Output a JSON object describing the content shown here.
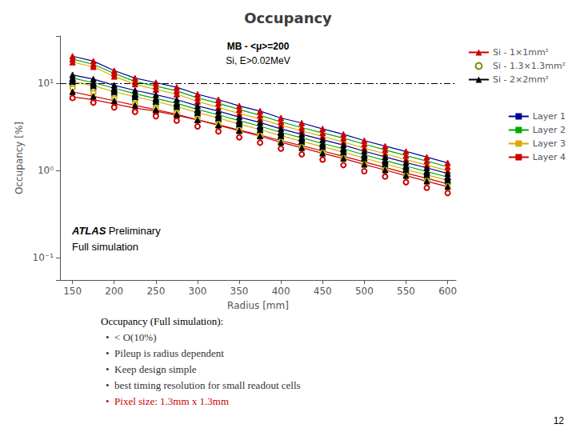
{
  "chart_data": {
    "type": "line",
    "title": "Occupancy",
    "xlabel": "Radius [mm]",
    "ylabel": "Occupancy [%]",
    "log": "y",
    "grid": false,
    "legend": "right",
    "xlim": [
      135,
      610
    ],
    "xticks": [
      150,
      200,
      250,
      300,
      350,
      400,
      450,
      500,
      550,
      600
    ],
    "ylim": [
      0.055,
      35
    ],
    "yticks": [
      {
        "value": 0.1,
        "label": "10⁻¹"
      },
      {
        "value": 1,
        "label": "10⁰"
      },
      {
        "value": 10,
        "label": "10¹"
      }
    ],
    "x": [
      150,
      175,
      200,
      225,
      250,
      275,
      300,
      325,
      350,
      375,
      400,
      425,
      450,
      475,
      500,
      525,
      550,
      575,
      600
    ],
    "series": [
      {
        "name": "Si - 1×1mm²",
        "color": "#cc0000",
        "marker": "triangle",
        "line_style": "solid",
        "series": [
          {
            "name": "Layer 1",
            "color": "#000099",
            "values": [
              20.5,
              18.0,
              14.0,
              11.5,
              10.2,
              9.0,
              7.5,
              6.5,
              5.5,
              4.8,
              4.0,
              3.5,
              3.0,
              2.6,
              2.2,
              1.9,
              1.65,
              1.42,
              1.22
            ]
          },
          {
            "name": "Layer 2",
            "color": "#00aa00",
            "values": [
              19.0,
              16.5,
              13.0,
              10.5,
              9.3,
              8.2,
              6.8,
              5.9,
              5.0,
              4.3,
              3.6,
              3.1,
              2.7,
              2.35,
              2.0,
              1.72,
              1.48,
              1.28,
              1.1
            ]
          },
          {
            "name": "Layer 3",
            "color": "#ddaa00",
            "values": [
              17.5,
              15.5,
              12.0,
              9.8,
              8.5,
              7.5,
              6.2,
              5.3,
              4.5,
              3.9,
              3.3,
              2.85,
              2.45,
              2.12,
              1.8,
              1.55,
              1.33,
              1.15,
              0.99
            ]
          },
          {
            "name": "Layer 4",
            "color": "#cc0000",
            "values": [
              7.0,
              6.5,
              5.8,
              5.2,
              4.8,
              4.3,
              3.8,
              3.35,
              2.9,
              2.55,
              2.2,
              1.92,
              1.67,
              1.45,
              1.25,
              1.08,
              0.93,
              0.81,
              0.7
            ]
          }
        ]
      },
      {
        "name": "Si - 1.3×1.3mm²",
        "color": "#888800",
        "marker": "open_circle",
        "line_style": "none",
        "series": [
          {
            "name": "Layer 1",
            "color": "#000099",
            "values": [
              10.5,
              9.3,
              8.0,
              7.0,
              6.2,
              5.5,
              4.65,
              4.05,
              3.45,
              3.0,
              2.55,
              2.2,
              1.9,
              1.65,
              1.4,
              1.21,
              1.04,
              0.9,
              0.78
            ]
          },
          {
            "name": "Layer 2",
            "color": "#00aa00",
            "values": [
              9.6,
              8.5,
              7.3,
              6.4,
              5.7,
              5.05,
              4.25,
              3.7,
              3.15,
              2.73,
              2.32,
              2.0,
              1.73,
              1.5,
              1.28,
              1.1,
              0.95,
              0.82,
              0.71
            ]
          },
          {
            "name": "Layer 3",
            "color": "#ddaa00",
            "values": [
              8.8,
              7.8,
              6.7,
              5.85,
              5.2,
              4.6,
              3.9,
              3.38,
              2.88,
              2.5,
              2.12,
              1.83,
              1.58,
              1.37,
              1.17,
              1.0,
              0.86,
              0.75,
              0.65
            ]
          },
          {
            "name": "Layer 4",
            "color": "#cc0000",
            "values": [
              6.8,
              6.0,
              5.3,
              4.7,
              4.2,
              3.73,
              3.2,
              2.8,
              2.4,
              2.08,
              1.78,
              1.53,
              1.33,
              1.15,
              0.98,
              0.85,
              0.73,
              0.63,
              0.55
            ]
          }
        ]
      },
      {
        "name": "Si - 2×2mm²",
        "color": "#000000",
        "marker": "triangle",
        "line_style": "solid",
        "series": [
          {
            "name": "Layer 1",
            "color": "#000099",
            "values": [
              12.5,
              11.2,
              9.5,
              8.3,
              7.4,
              6.5,
              5.5,
              4.8,
              4.1,
              3.55,
              3.0,
              2.6,
              2.25,
              1.95,
              1.66,
              1.43,
              1.23,
              1.07,
              0.92
            ]
          },
          {
            "name": "Layer 2",
            "color": "#00aa00",
            "values": [
              11.5,
              10.2,
              8.8,
              7.6,
              6.7,
              5.9,
              5.0,
              4.35,
              3.72,
              3.22,
              2.73,
              2.36,
              2.04,
              1.77,
              1.51,
              1.3,
              1.12,
              0.97,
              0.84
            ]
          },
          {
            "name": "Layer 3",
            "color": "#ddaa00",
            "values": [
              10.5,
              9.4,
              8.0,
              7.0,
              6.2,
              5.4,
              4.6,
              4.0,
              3.4,
              2.94,
              2.5,
              2.16,
              1.87,
              1.62,
              1.38,
              1.19,
              1.02,
              0.89,
              0.77
            ]
          },
          {
            "name": "Layer 4",
            "color": "#cc0000",
            "values": [
              8.0,
              7.1,
              6.3,
              5.6,
              4.98,
              4.42,
              3.8,
              3.3,
              2.85,
              2.47,
              2.1,
              1.82,
              1.57,
              1.37,
              1.17,
              1.01,
              0.87,
              0.75,
              0.65
            ]
          }
        ]
      }
    ],
    "hlines": [
      {
        "value": 10,
        "color": "black",
        "line_style": "dashdot"
      }
    ],
    "annotations": [
      "MB - <μ>=200",
      "Si, E>0.02MeV",
      "ATLAS",
      "Preliminary",
      "Full simulation"
    ],
    "notes": {
      "title": "Occupancy (Full simulation):",
      "items": [
        {
          "text": "•  < O(10%)",
          "color": "#333333"
        },
        {
          "text": "•  Pileup is radius dependent",
          "color": "#333333"
        },
        {
          "text": "•  Keep design simple",
          "color": "#333333"
        },
        {
          "text": "•  best timing resolution for small readout cells",
          "color": "#333333"
        },
        {
          "text": "•  Pixel size: 1.3mm x 1.3mm",
          "color": "#cc0000"
        }
      ]
    },
    "page_number": "12"
  }
}
